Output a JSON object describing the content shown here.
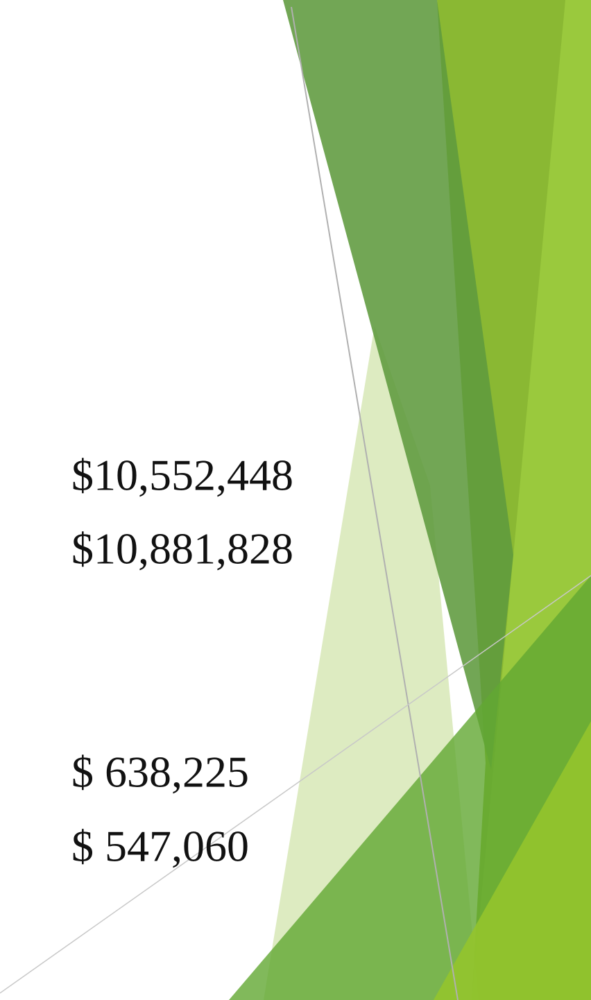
{
  "amounts": [
    "$10,552,448",
    "$10,881,828",
    "$ 638,225",
    "$ 547,060"
  ]
}
